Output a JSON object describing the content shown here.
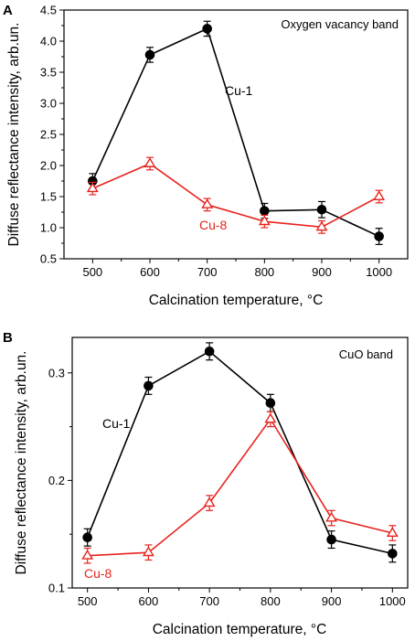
{
  "chart_data": [
    {
      "panel": "A",
      "type": "line",
      "annotation": "Oxygen vacancy band",
      "xlabel": "Calcination temperature, °C",
      "ylabel": "Diffuse reflectance intensity, arb.un.",
      "x": [
        500,
        600,
        700,
        800,
        900,
        1000
      ],
      "xticks": [
        "500",
        "600",
        "700",
        "800",
        "900",
        "1000"
      ],
      "xlim": [
        450,
        1050
      ],
      "ylim": [
        0.5,
        4.5
      ],
      "yticks": [
        "0.5",
        "1.0",
        "1.5",
        "2.0",
        "2.5",
        "3.0",
        "3.5",
        "4.0",
        "4.5"
      ],
      "series": [
        {
          "name": "Cu-1",
          "color": "#000000",
          "marker": "filled-circle",
          "values": [
            1.75,
            3.78,
            4.2,
            1.27,
            1.29,
            0.86
          ],
          "errors": [
            0.12,
            0.12,
            0.12,
            0.12,
            0.13,
            0.13
          ]
        },
        {
          "name": "Cu-8",
          "color": "#e8231e",
          "marker": "open-triangle",
          "values": [
            1.63,
            2.03,
            1.37,
            1.1,
            1.01,
            1.5
          ],
          "errors": [
            0.1,
            0.1,
            0.1,
            0.1,
            0.1,
            0.1
          ]
        }
      ]
    },
    {
      "panel": "B",
      "type": "line",
      "annotation": "CuO band",
      "xlabel": "Calcination temperature, °C",
      "ylabel": "Diffuse reflectance intensity, arb.un.",
      "x": [
        500,
        600,
        700,
        800,
        900,
        1000
      ],
      "xticks": [
        "500",
        "600",
        "700",
        "800",
        "900",
        "1000"
      ],
      "xlim": [
        475,
        1025
      ],
      "ylim": [
        0.1,
        0.333
      ],
      "yticks": [
        "0.1",
        "0.2",
        "0.3"
      ],
      "series": [
        {
          "name": "Cu-1",
          "color": "#000000",
          "marker": "filled-circle",
          "values": [
            0.147,
            0.288,
            0.32,
            0.272,
            0.145,
            0.132
          ],
          "errors": [
            0.008,
            0.008,
            0.008,
            0.008,
            0.008,
            0.008
          ]
        },
        {
          "name": "Cu-8",
          "color": "#e8231e",
          "marker": "open-triangle",
          "values": [
            0.13,
            0.133,
            0.179,
            0.257,
            0.165,
            0.151
          ],
          "errors": [
            0.007,
            0.007,
            0.007,
            0.007,
            0.007,
            0.007
          ]
        }
      ]
    }
  ]
}
